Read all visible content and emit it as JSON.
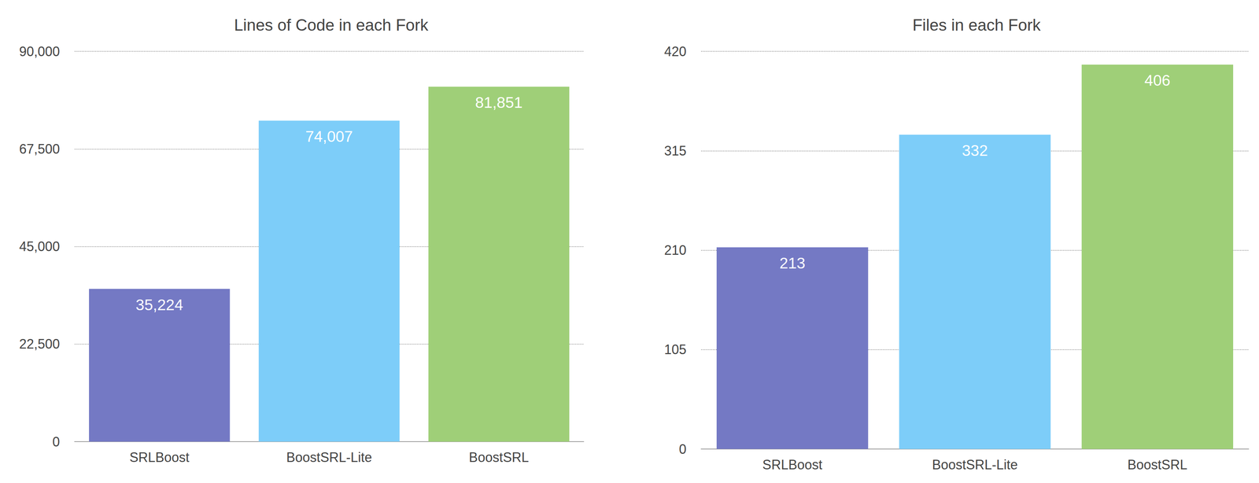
{
  "chart_data": [
    {
      "type": "bar",
      "title": "Lines of Code in each Fork",
      "categories": [
        "SRLBoost",
        "BoostSRL-Lite",
        "BoostSRL"
      ],
      "values": [
        35224,
        74007,
        81851
      ],
      "value_labels": [
        "35,224",
        "74,007",
        "81,851"
      ],
      "colors": [
        "#7479c4",
        "#7dcdf9",
        "#9fcf78"
      ],
      "ylim": [
        0,
        90000
      ],
      "yticks": [
        0,
        {
          "value": 22500,
          "label": "22,500"
        },
        {
          "value": 45000,
          "label": "45,000"
        },
        {
          "value": 67500,
          "label": "67,500"
        },
        {
          "value": 90000,
          "label": "90,000"
        }
      ],
      "grid": true,
      "data_labels": true
    },
    {
      "type": "bar",
      "title": "Files in each Fork",
      "categories": [
        "SRLBoost",
        "BoostSRL-Lite",
        "BoostSRL"
      ],
      "values": [
        213,
        332,
        406
      ],
      "colors": [
        "#7479c4",
        "#7dcdf9",
        "#9fcf78"
      ],
      "ylim": [
        0,
        420
      ],
      "yticks": [
        0,
        105,
        210,
        315,
        420
      ],
      "grid": true,
      "data_labels": true
    }
  ]
}
